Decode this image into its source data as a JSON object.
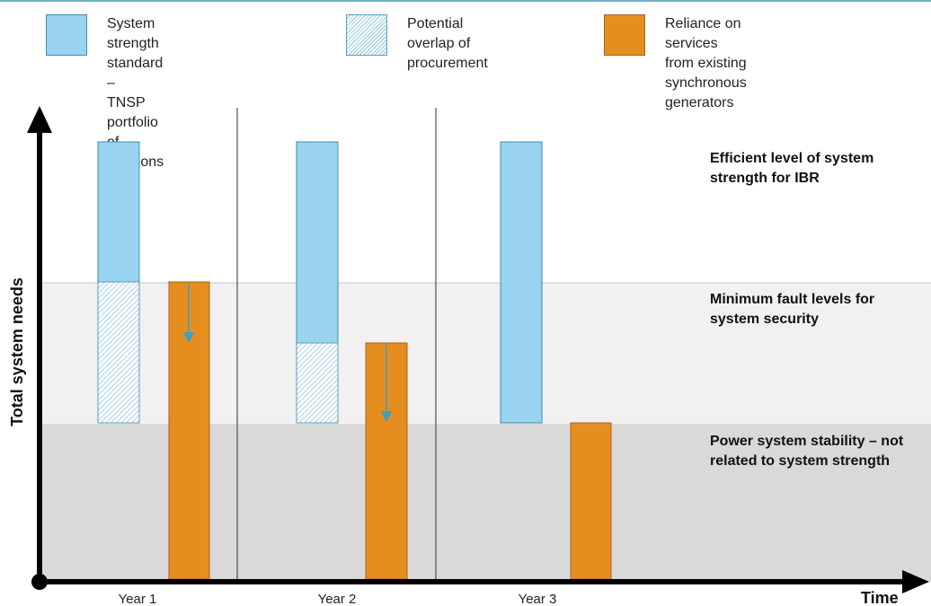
{
  "legend": {
    "items": [
      {
        "label": "System strength standard –\nTNSP portfolio of solutions",
        "style": "blue-solid"
      },
      {
        "label": "Potential overlap of\nprocurement",
        "style": "blue-hatched"
      },
      {
        "label": "Reliance on services from existing\nsynchronous generators",
        "style": "orange-solid"
      }
    ]
  },
  "zones": {
    "efficient": {
      "line1": "Efficient level of system",
      "line2": "strength for IBR"
    },
    "minimum": {
      "line1": "Minimum fault levels for",
      "line2": "system security"
    },
    "stability": {
      "line1": "Power system stability – not",
      "line2": "related to system strength"
    }
  },
  "axes": {
    "y_title": "Total system needs",
    "x_title": "Time",
    "periods": [
      "Year 1",
      "Year 2",
      "Year 3"
    ]
  },
  "colors": {
    "blue": "#98d3ef",
    "orange": "#e58e1f",
    "arrow": "#3aa0c8",
    "zone_light": "#f1f1f1",
    "zone_dark": "#d9d9d9"
  }
}
